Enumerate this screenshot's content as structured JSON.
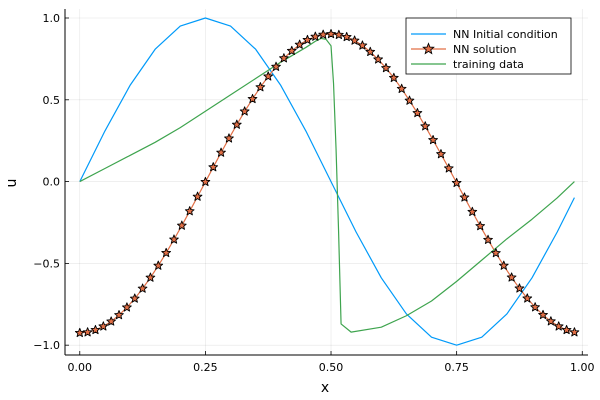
{
  "chart_data": {
    "type": "line",
    "xlabel": "x",
    "ylabel": "u",
    "xlim": [
      -0.0294,
      1.0114
    ],
    "ylim": [
      -1.06,
      1.055
    ],
    "grid": true,
    "legend_position": "top-right",
    "x_ticks": [
      {
        "value": 0.0,
        "label": "0.00"
      },
      {
        "value": 0.25,
        "label": "0.25"
      },
      {
        "value": 0.5,
        "label": "0.50"
      },
      {
        "value": 0.75,
        "label": "0.75"
      },
      {
        "value": 1.0,
        "label": "1.00"
      }
    ],
    "y_ticks": [
      {
        "value": 1.0,
        "label": "1.0"
      },
      {
        "value": 0.5,
        "label": "0.5"
      },
      {
        "value": 0.0,
        "label": "0.0"
      },
      {
        "value": -0.5,
        "label": "−0.5"
      },
      {
        "value": -1.0,
        "label": "−1.0"
      }
    ],
    "series": [
      {
        "name": "NN Initial condition",
        "color": "#009af9",
        "marker": "none",
        "x": [
          0.0,
          0.05,
          0.1,
          0.15,
          0.2,
          0.25,
          0.3,
          0.35,
          0.4,
          0.45,
          0.5,
          0.55,
          0.6,
          0.65,
          0.7,
          0.75,
          0.8,
          0.85,
          0.9,
          0.95,
          0.9844
        ],
        "y": [
          0.0,
          0.309,
          0.588,
          0.809,
          0.951,
          1.0,
          0.951,
          0.809,
          0.588,
          0.309,
          0.0,
          -0.309,
          -0.588,
          -0.809,
          -0.951,
          -1.0,
          -0.951,
          -0.809,
          -0.588,
          -0.309,
          -0.098
        ]
      },
      {
        "name": "NN solution",
        "color": "#e26f46",
        "marker": "star",
        "marker_color": "#e26f46",
        "marker_stroke": "#000000",
        "x": [
          0.0,
          0.0156,
          0.0312,
          0.0469,
          0.0625,
          0.0781,
          0.0938,
          0.1094,
          0.125,
          0.1406,
          0.1562,
          0.1719,
          0.1875,
          0.2031,
          0.2188,
          0.2344,
          0.25,
          0.2656,
          0.2812,
          0.2969,
          0.3125,
          0.3281,
          0.3438,
          0.3594,
          0.375,
          0.3906,
          0.4062,
          0.4219,
          0.4375,
          0.4531,
          0.4688,
          0.4844,
          0.5,
          0.5156,
          0.5312,
          0.5469,
          0.5625,
          0.5781,
          0.5938,
          0.6094,
          0.625,
          0.6406,
          0.6562,
          0.6719,
          0.6875,
          0.7031,
          0.7188,
          0.7344,
          0.75,
          0.7656,
          0.7812,
          0.7969,
          0.8125,
          0.8281,
          0.8438,
          0.8594,
          0.875,
          0.8906,
          0.9062,
          0.9219,
          0.9375,
          0.9531,
          0.9688,
          0.9844
        ],
        "y": [
          -0.925,
          -0.921,
          -0.907,
          -0.885,
          -0.855,
          -0.816,
          -0.769,
          -0.715,
          -0.654,
          -0.587,
          -0.514,
          -0.436,
          -0.354,
          -0.269,
          -0.181,
          -0.092,
          -0.002,
          0.088,
          0.177,
          0.264,
          0.348,
          0.429,
          0.505,
          0.577,
          0.643,
          0.702,
          0.754,
          0.799,
          0.837,
          0.866,
          0.886,
          0.898,
          0.902,
          0.897,
          0.884,
          0.862,
          0.832,
          0.793,
          0.747,
          0.694,
          0.634,
          0.567,
          0.495,
          0.419,
          0.338,
          0.254,
          0.168,
          0.081,
          -0.008,
          -0.097,
          -0.185,
          -0.272,
          -0.356,
          -0.437,
          -0.514,
          -0.586,
          -0.653,
          -0.714,
          -0.768,
          -0.815,
          -0.854,
          -0.885,
          -0.907,
          -0.921
        ]
      },
      {
        "name": "training data",
        "color": "#3ea44e",
        "marker": "none",
        "x": [
          0.0,
          0.05,
          0.1,
          0.15,
          0.2,
          0.25,
          0.3,
          0.35,
          0.4,
          0.45,
          0.47,
          0.48,
          0.49,
          0.5,
          0.505,
          0.51,
          0.515,
          0.52,
          0.54,
          0.6,
          0.65,
          0.7,
          0.75,
          0.8,
          0.85,
          0.9,
          0.95,
          0.9844
        ],
        "y": [
          0.0,
          0.08,
          0.16,
          0.24,
          0.33,
          0.43,
          0.53,
          0.63,
          0.73,
          0.82,
          0.86,
          0.875,
          0.87,
          0.83,
          0.6,
          0.2,
          -0.3,
          -0.87,
          -0.92,
          -0.89,
          -0.82,
          -0.73,
          -0.61,
          -0.48,
          -0.35,
          -0.23,
          -0.1,
          0.0
        ]
      }
    ]
  }
}
